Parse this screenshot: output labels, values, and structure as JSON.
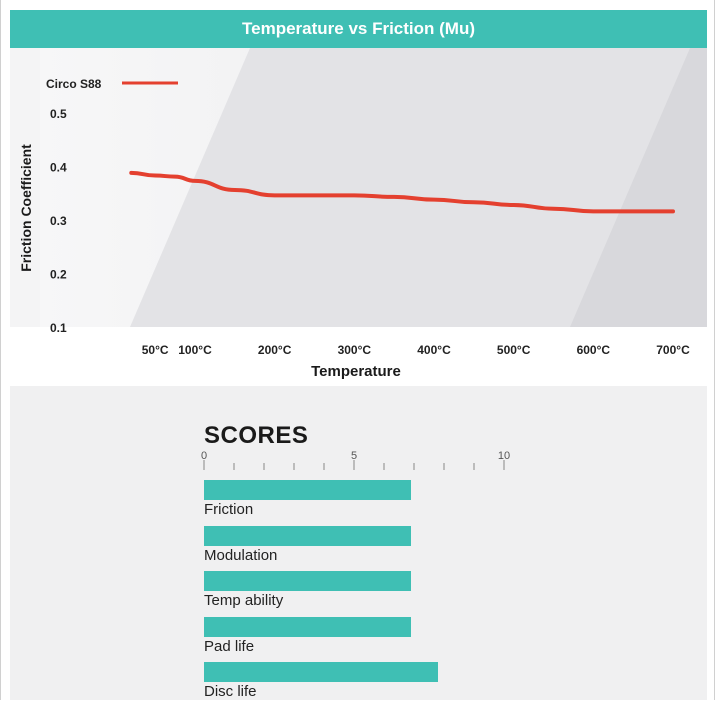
{
  "colors": {
    "accent": "#3fbfb4",
    "series": "#e4402f"
  },
  "chart_data": {
    "type": "line",
    "title": "Temperature vs Friction (Mu)",
    "xlabel": "Temperature",
    "ylabel": "Friction Coefficient",
    "x_ticks": [
      "50°C",
      "100°C",
      "200°C",
      "300°C",
      "400°C",
      "500°C",
      "600°C",
      "700°C"
    ],
    "y_ticks": [
      "0.5",
      "0.4",
      "0.3",
      "0.2",
      "0.1"
    ],
    "ylim": [
      0.1,
      0.5
    ],
    "legend_position": "top-left",
    "series": [
      {
        "name": "Circo S88",
        "color": "#e4402f",
        "points": [
          {
            "x": "20°C",
            "y": 0.39
          },
          {
            "x": "50°C",
            "y": 0.385
          },
          {
            "x": "75°C",
            "y": 0.383
          },
          {
            "x": "100°C",
            "y": 0.375
          },
          {
            "x": "150°C",
            "y": 0.358
          },
          {
            "x": "200°C",
            "y": 0.348
          },
          {
            "x": "250°C",
            "y": 0.348
          },
          {
            "x": "300°C",
            "y": 0.348
          },
          {
            "x": "350°C",
            "y": 0.345
          },
          {
            "x": "400°C",
            "y": 0.34
          },
          {
            "x": "450°C",
            "y": 0.335
          },
          {
            "x": "500°C",
            "y": 0.33
          },
          {
            "x": "550°C",
            "y": 0.323
          },
          {
            "x": "600°C",
            "y": 0.318
          },
          {
            "x": "650°C",
            "y": 0.318
          },
          {
            "x": "700°C",
            "y": 0.318
          }
        ]
      }
    ]
  },
  "scores": {
    "title": "SCORES",
    "scale_labels": [
      "0",
      "5",
      "10"
    ],
    "max": 10,
    "items": [
      {
        "label": "Friction",
        "value": 7
      },
      {
        "label": "Modulation",
        "value": 7
      },
      {
        "label": "Temp ability",
        "value": 7
      },
      {
        "label": "Pad life",
        "value": 7
      },
      {
        "label": "Disc life",
        "value": 8
      }
    ]
  }
}
